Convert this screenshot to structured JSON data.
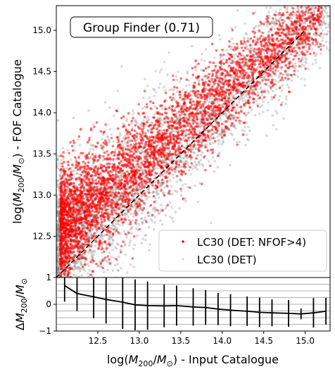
{
  "chart_data": [
    {
      "type": "scatter",
      "annotation": "Group Finder (0.71)",
      "ylabel": "log(M₂₀₀/M⊙) - FOF Catalogue",
      "ylabel_parts": {
        "pre": "log(",
        "m": "M",
        "sub": "200",
        "slash": "/",
        "msun": "M",
        "msun_sub": "⊙",
        "post": ") - FOF Catalogue"
      },
      "xlim": [
        12.0,
        15.3
      ],
      "ylim": [
        12.0,
        15.3
      ],
      "yticks": [
        12.5,
        13.0,
        13.5,
        14.0,
        14.5,
        15.0
      ],
      "ytick_labels": [
        "12.5",
        "13.0",
        "13.5",
        "14.0",
        "14.5",
        "15.0"
      ],
      "xticks": [
        12.5,
        13.0,
        13.5,
        14.0,
        14.5,
        15.0
      ],
      "one_to_one_line": {
        "x": [
          12.0,
          15.0
        ],
        "y": [
          12.0,
          15.0
        ],
        "style": "dashed",
        "color": "#000000"
      },
      "legend_position": "lower-right",
      "series": [
        {
          "name": "LC30 (DET)",
          "color": "#808080",
          "distribution": {
            "count": 4200,
            "x_range": [
              12.0,
              15.3
            ],
            "y_spread": 0.45,
            "y_offset_at_low_mass": 0.35
          },
          "sample_points": [
            [
              12.1,
              12.9
            ],
            [
              12.3,
              13.2
            ],
            [
              12.5,
              12.6
            ],
            [
              12.8,
              13.4
            ],
            [
              13.2,
              13.8
            ],
            [
              13.6,
              13.3
            ],
            [
              14.1,
              14.2
            ],
            [
              14.6,
              14.5
            ],
            [
              15.0,
              14.9
            ]
          ]
        },
        {
          "name": "LC30 (DET: NFOF>4)",
          "color": "#ff0000",
          "distribution": {
            "count": 3600,
            "x_range": [
              12.05,
              15.2
            ],
            "y_spread": 0.35,
            "y_offset_at_low_mass": 0.55
          },
          "sample_points": [
            [
              12.2,
              13.0
            ],
            [
              12.6,
              13.3
            ],
            [
              13.0,
              13.3
            ],
            [
              13.4,
              13.5
            ],
            [
              13.8,
              13.7
            ],
            [
              14.2,
              14.0
            ],
            [
              14.6,
              14.4
            ],
            [
              15.0,
              14.7
            ]
          ]
        }
      ]
    },
    {
      "type": "line",
      "ylabel": "ΔM₂₀₀/M⊙",
      "ylabel_parts": {
        "delta": "Δ",
        "m": "M",
        "sub": "200",
        "slash": "/",
        "msun": "M",
        "msun_sub": "⊙"
      },
      "xlabel": "log(M₂₀₀/M⊙) - Input Catalogue",
      "xlabel_parts": {
        "pre": "log(",
        "m": "M",
        "sub": "200",
        "slash": "/",
        "msun": "M",
        "msun_sub": "⊙",
        "post": ") - Input Catalogue"
      },
      "xlim": [
        12.0,
        15.3
      ],
      "ylim": [
        -1,
        1
      ],
      "yticks": [
        -1,
        0,
        1
      ],
      "ytick_labels": [
        "−1",
        "0",
        "1"
      ],
      "xticks": [
        12.5,
        13.0,
        13.5,
        14.0,
        14.5,
        15.0
      ],
      "xtick_labels": [
        "12.5",
        "13.0",
        "13.5",
        "14.0",
        "14.5",
        "15.0"
      ],
      "gridlines_y": [
        -0.75,
        -0.5,
        -0.25,
        0.0,
        0.25,
        0.5,
        0.75
      ],
      "grid": true,
      "x": [
        12.1,
        12.25,
        12.45,
        12.6,
        12.8,
        12.95,
        13.1,
        13.3,
        13.45,
        13.65,
        13.8,
        13.95,
        14.1,
        14.3,
        14.45,
        14.6,
        14.8,
        14.95,
        15.1,
        15.25
      ],
      "y": [
        0.7,
        0.4,
        0.28,
        0.18,
        0.08,
        -0.02,
        -0.05,
        -0.06,
        -0.05,
        -0.1,
        -0.12,
        -0.18,
        -0.22,
        -0.26,
        -0.3,
        -0.32,
        -0.34,
        -0.36,
        -0.32,
        -0.26
      ],
      "err": [
        0.6,
        0.65,
        0.8,
        0.9,
        1.0,
        0.95,
        0.9,
        0.8,
        0.75,
        0.7,
        0.65,
        0.6,
        0.6,
        0.55,
        0.55,
        0.5,
        0.5,
        0.2,
        0.55,
        0.5
      ]
    }
  ]
}
